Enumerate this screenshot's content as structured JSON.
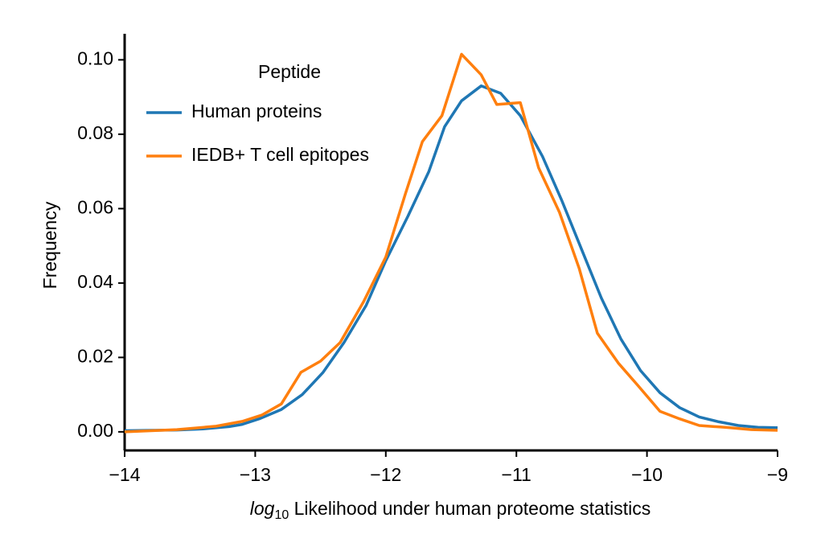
{
  "chart_data": {
    "type": "line",
    "xlabel": {
      "log": "log",
      "sub": "10",
      "text": " Likelihood under human proteome statistics"
    },
    "ylabel": "Frequency",
    "legend_title": "Peptide",
    "legend": "upper left",
    "xlim": [
      -14,
      -9
    ],
    "ylim": [
      -0.005,
      0.107
    ],
    "xticks": [
      {
        "value": -14,
        "label": "−14"
      },
      {
        "value": -13,
        "label": "−13"
      },
      {
        "value": -12,
        "label": "−12"
      },
      {
        "value": -11,
        "label": "−11"
      },
      {
        "value": -10,
        "label": "−10"
      },
      {
        "value": -9,
        "label": "−9"
      }
    ],
    "yticks": [
      {
        "value": 0,
        "label": "0.00"
      },
      {
        "value": 0.02,
        "label": "0.02"
      },
      {
        "value": 0.04,
        "label": "0.04"
      },
      {
        "value": 0.06,
        "label": "0.06"
      },
      {
        "value": 0.08,
        "label": "0.08"
      },
      {
        "value": 0.1,
        "label": "0.10"
      }
    ],
    "series": [
      {
        "name": "Human proteins",
        "color": "#1f77b4",
        "x": [
          -14,
          -13.8,
          -13.6,
          -13.4,
          -13.2,
          -13.1,
          -12.97,
          -12.8,
          -12.64,
          -12.48,
          -12.32,
          -12.15,
          -12.0,
          -11.83,
          -11.67,
          -11.55,
          -11.42,
          -11.27,
          -11.12,
          -10.97,
          -10.8,
          -10.65,
          -10.5,
          -10.35,
          -10.2,
          -10.05,
          -9.9,
          -9.75,
          -9.6,
          -9.45,
          -9.3,
          -9.15,
          -9.0
        ],
        "values": [
          0.0003,
          0.0004,
          0.0005,
          0.0008,
          0.0014,
          0.002,
          0.0035,
          0.006,
          0.01,
          0.016,
          0.024,
          0.034,
          0.046,
          0.058,
          0.07,
          0.082,
          0.089,
          0.093,
          0.091,
          0.085,
          0.074,
          0.062,
          0.049,
          0.036,
          0.025,
          0.0165,
          0.0105,
          0.0065,
          0.004,
          0.0027,
          0.0017,
          0.0012,
          0.0011
        ]
      },
      {
        "name": "IEDB+ T cell epitopes",
        "color": "#ff7f0e",
        "x": [
          -14,
          -13.8,
          -13.6,
          -13.3,
          -13.1,
          -12.95,
          -12.8,
          -12.65,
          -12.5,
          -12.35,
          -12.17,
          -12.0,
          -11.85,
          -11.72,
          -11.57,
          -11.42,
          -11.27,
          -11.15,
          -10.97,
          -10.83,
          -10.67,
          -10.52,
          -10.38,
          -10.22,
          -10.07,
          -9.9,
          -9.75,
          -9.6,
          -9.4,
          -9.2,
          -9.0
        ],
        "values": [
          0.0,
          0.0003,
          0.0006,
          0.0015,
          0.0028,
          0.0045,
          0.0075,
          0.016,
          0.019,
          0.024,
          0.035,
          0.047,
          0.064,
          0.078,
          0.085,
          0.1015,
          0.096,
          0.088,
          0.0885,
          0.071,
          0.059,
          0.044,
          0.0265,
          0.0185,
          0.0125,
          0.0055,
          0.0035,
          0.0017,
          0.0012,
          0.0006,
          0.0004
        ]
      }
    ]
  }
}
